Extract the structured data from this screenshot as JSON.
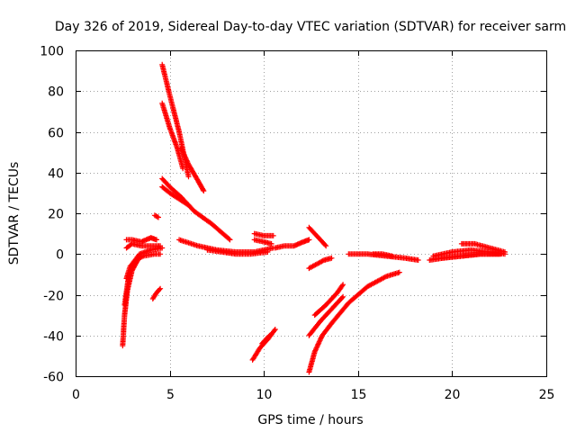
{
  "chart_data": {
    "type": "scatter",
    "title": "Day 326 of 2019, Sidereal Day-to-day VTEC variation (SDTVAR) for receiver sarm",
    "xlabel": "GPS time / hours",
    "ylabel": "SDTVAR / TECUs",
    "xlim": [
      0,
      25
    ],
    "ylim": [
      -60,
      100
    ],
    "xticks": [
      0,
      5,
      10,
      15,
      20,
      25
    ],
    "yticks": [
      -60,
      -40,
      -20,
      0,
      20,
      40,
      60,
      80,
      100
    ],
    "grid": true,
    "marker": "+",
    "color": "#ff0000",
    "segments": [
      {
        "name": "arc-1",
        "x": [
          2.5,
          2.6,
          2.75,
          3.0,
          3.3
        ],
        "y": [
          -45,
          -30,
          -18,
          -8,
          -3
        ]
      },
      {
        "name": "arc-2",
        "x": [
          2.6,
          2.8,
          3.0,
          3.4,
          4.0,
          4.6
        ],
        "y": [
          -25,
          -12,
          -5,
          0,
          2,
          3
        ]
      },
      {
        "name": "arc-3",
        "x": [
          2.7,
          2.9,
          3.2,
          3.6,
          4.2,
          4.5
        ],
        "y": [
          -12,
          -6,
          -3,
          -1,
          0,
          0
        ]
      },
      {
        "name": "arc-4",
        "x": [
          2.7,
          3.0,
          3.5,
          4.0,
          4.5
        ],
        "y": [
          3,
          5,
          4,
          4,
          4
        ]
      },
      {
        "name": "arc-5",
        "x": [
          2.7,
          3.0,
          3.5,
          4.0,
          4.3
        ],
        "y": [
          7,
          7,
          6,
          8,
          7
        ]
      },
      {
        "name": "arc-6",
        "x": [
          4.1,
          4.3,
          4.5
        ],
        "y": [
          -22,
          -19,
          -17
        ]
      },
      {
        "name": "arc-7",
        "x": [
          4.2,
          4.4
        ],
        "y": [
          19,
          18
        ]
      },
      {
        "name": "arc-8",
        "x": [
          4.6,
          5.0,
          5.5,
          6.0
        ],
        "y": [
          93,
          78,
          60,
          38
        ]
      },
      {
        "name": "arc-9",
        "x": [
          4.6,
          5.0,
          5.4,
          5.7
        ],
        "y": [
          74,
          62,
          52,
          42
        ]
      },
      {
        "name": "arc-10",
        "x": [
          5.6,
          6.0,
          6.5,
          6.8
        ],
        "y": [
          52,
          44,
          36,
          31
        ]
      },
      {
        "name": "arc-11",
        "x": [
          4.6,
          5.0,
          5.6,
          6.3,
          7.2,
          8.2
        ],
        "y": [
          37,
          33,
          28,
          21,
          15,
          7
        ]
      },
      {
        "name": "arc-12",
        "x": [
          4.6,
          5.0,
          5.5,
          6.0
        ],
        "y": [
          33,
          30,
          27,
          24
        ]
      },
      {
        "name": "arc-13",
        "x": [
          5.5,
          6.5,
          7.5,
          8.5,
          9.5,
          10.5
        ],
        "y": [
          7,
          4,
          2,
          1,
          1,
          3
        ]
      },
      {
        "name": "arc-14",
        "x": [
          7.0,
          7.8,
          8.5,
          9.3,
          10.2
        ],
        "y": [
          2,
          1,
          0,
          0,
          1
        ]
      },
      {
        "name": "arc-15",
        "x": [
          9.4,
          9.8,
          10.2,
          10.6
        ],
        "y": [
          -52,
          -46,
          -42,
          -37
        ]
      },
      {
        "name": "arc-16",
        "x": [
          9.9,
          10.3
        ],
        "y": [
          -44,
          -40
        ]
      },
      {
        "name": "arc-17",
        "x": [
          9.5,
          10.0,
          10.5
        ],
        "y": [
          10,
          9,
          9
        ]
      },
      {
        "name": "arc-18",
        "x": [
          9.5,
          10.0,
          10.4
        ],
        "y": [
          7,
          6,
          5
        ]
      },
      {
        "name": "arc-19",
        "x": [
          10.6,
          11.1,
          11.6,
          12.1,
          12.4
        ],
        "y": [
          3,
          4,
          4,
          6,
          7
        ]
      },
      {
        "name": "arc-20",
        "x": [
          12.4,
          12.7,
          13.0,
          13.3
        ],
        "y": [
          13,
          10,
          7,
          4
        ]
      },
      {
        "name": "arc-21",
        "x": [
          12.4,
          12.8,
          13.2,
          13.6
        ],
        "y": [
          -7,
          -5,
          -3,
          -2
        ]
      },
      {
        "name": "arc-22",
        "x": [
          12.4,
          12.7,
          13.1,
          13.6
        ],
        "y": [
          -58,
          -48,
          -40,
          -34
        ]
      },
      {
        "name": "arc-23",
        "x": [
          13.6,
          14.5,
          15.5,
          16.5,
          17.2
        ],
        "y": [
          -34,
          -24,
          -16,
          -11,
          -9
        ]
      },
      {
        "name": "arc-24",
        "x": [
          12.4,
          13.0,
          13.6,
          14.2
        ],
        "y": [
          -40,
          -33,
          -27,
          -21
        ]
      },
      {
        "name": "arc-25",
        "x": [
          12.7,
          13.3,
          13.9,
          14.2
        ],
        "y": [
          -30,
          -25,
          -19,
          -15
        ]
      },
      {
        "name": "arc-26",
        "x": [
          14.5,
          15.5,
          16.5,
          17.5,
          18.2
        ],
        "y": [
          0,
          0,
          -1,
          -2,
          -3
        ]
      },
      {
        "name": "arc-27",
        "x": [
          15.8,
          16.3,
          16.8
        ],
        "y": [
          0,
          0,
          -1
        ]
      },
      {
        "name": "arc-28",
        "x": [
          18.8,
          19.5,
          20.5,
          21.5,
          22.5
        ],
        "y": [
          -3,
          -2,
          -1,
          0,
          0
        ]
      },
      {
        "name": "arc-29",
        "x": [
          19.0,
          20.0,
          21.0,
          22.0,
          22.8
        ],
        "y": [
          -1,
          1,
          2,
          1,
          0
        ]
      },
      {
        "name": "arc-30",
        "x": [
          19.5,
          20.5,
          21.5,
          22.6
        ],
        "y": [
          -2,
          -1,
          0,
          0
        ]
      },
      {
        "name": "arc-31",
        "x": [
          20.5,
          21.2,
          22.0,
          22.8
        ],
        "y": [
          5,
          5,
          3,
          1
        ]
      }
    ]
  }
}
